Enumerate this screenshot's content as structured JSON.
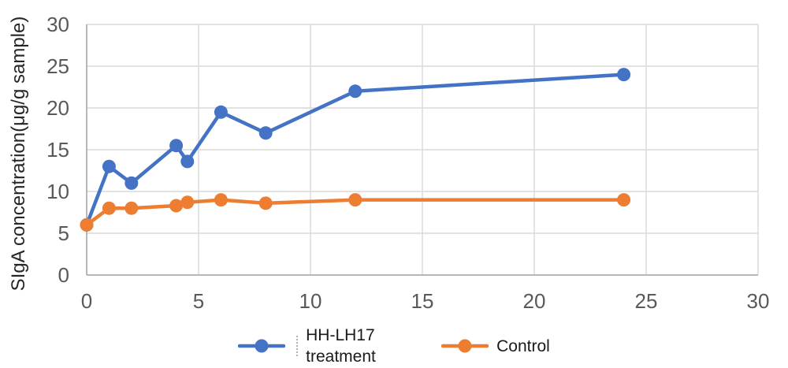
{
  "chart_data": {
    "type": "line",
    "title": "",
    "xlabel": "",
    "ylabel": "SIgA concentration(μg/g sample)",
    "xlim": [
      0,
      30
    ],
    "ylim": [
      0,
      30
    ],
    "xticks": [
      0,
      5,
      10,
      15,
      20,
      25,
      30
    ],
    "yticks": [
      0,
      5,
      10,
      15,
      20,
      25,
      30
    ],
    "grid": true,
    "legend_position": "bottom-center",
    "x": [
      0,
      1,
      2,
      4,
      4.5,
      6,
      8,
      12,
      24
    ],
    "series": [
      {
        "name": "HH-LH17 treatment",
        "color": "#4472C4",
        "values": [
          6,
          13,
          11,
          15.5,
          13.6,
          19.5,
          17,
          22,
          24
        ]
      },
      {
        "name": "Control",
        "color": "#ED7D31",
        "values": [
          6,
          8,
          8,
          8.3,
          8.7,
          9,
          8.6,
          9,
          9
        ]
      }
    ],
    "gridline_color": "#D9D9D9",
    "axis_line_color": "#A6A6A6",
    "tick_label_color": "#595959",
    "marker_radius": 8.5,
    "line_width": 4.5
  }
}
